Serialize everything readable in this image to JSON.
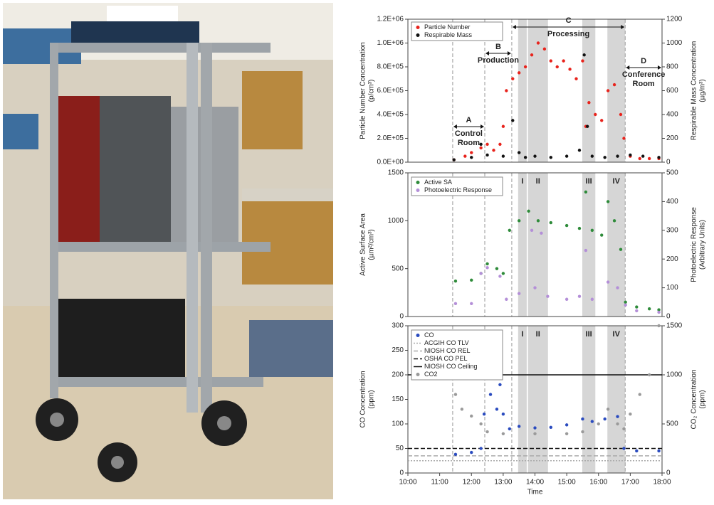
{
  "chart_data": [
    {
      "type": "scatter",
      "ylabel": [
        "Particle Number Concentration",
        "(p/cm³)"
      ],
      "y2label": [
        "Respirable Mass Concentration",
        "(µg/m³)"
      ],
      "xlim": [
        10,
        18
      ],
      "ylim": [
        0,
        1200000
      ],
      "yticks": [
        {
          "value": 0,
          "label": "0.0E+00"
        },
        {
          "value": 200000,
          "label": "2.0E+05"
        },
        {
          "value": 400000,
          "label": "4.0E+05"
        },
        {
          "value": 600000,
          "label": "6.0E+05"
        },
        {
          "value": 800000,
          "label": "8.0E+05"
        },
        {
          "value": 1000000,
          "label": "1.0E+06"
        },
        {
          "value": 1200000,
          "label": "1.2E+06"
        }
      ],
      "y2lim": [
        0,
        1200
      ],
      "y2ticks": [
        0,
        200,
        400,
        600,
        800,
        1000,
        1200
      ],
      "series": [
        {
          "name": "Particle Number",
          "color": "#e8231c",
          "x": [
            11.45,
            11.8,
            12.0,
            12.3,
            12.5,
            12.7,
            12.9,
            13.0,
            13.1,
            13.3,
            13.5,
            13.7,
            13.9,
            14.1,
            14.3,
            14.5,
            14.7,
            14.9,
            15.1,
            15.3,
            15.5,
            15.6,
            15.7,
            15.9,
            16.1,
            16.3,
            16.5,
            16.7,
            16.8,
            17.0,
            17.3,
            17.6,
            17.9
          ],
          "values": [
            20000,
            50000,
            80000,
            120000,
            150000,
            100000,
            150000,
            300000,
            600000,
            700000,
            750000,
            800000,
            900000,
            1000000,
            950000,
            850000,
            800000,
            850000,
            780000,
            700000,
            850000,
            300000,
            500000,
            400000,
            350000,
            600000,
            650000,
            400000,
            200000,
            50000,
            30000,
            30000,
            30000
          ]
        },
        {
          "name": "Respirable Mass",
          "color": "#111111",
          "axis": "y2",
          "x": [
            11.45,
            12.0,
            12.3,
            12.5,
            13.0,
            13.3,
            13.5,
            13.7,
            14.0,
            14.5,
            15.0,
            15.4,
            15.55,
            15.65,
            15.8,
            16.2,
            16.6,
            17.0,
            17.4,
            17.9
          ],
          "values": [
            20,
            40,
            150,
            60,
            50,
            350,
            80,
            40,
            50,
            40,
            50,
            100,
            900,
            300,
            50,
            40,
            50,
            60,
            50,
            40
          ]
        }
      ],
      "phases": [
        {
          "letter": "A",
          "label": [
            "Control",
            "Room"
          ],
          "start": 11.41,
          "end": 12.42
        },
        {
          "letter": "B",
          "label": [
            "Production"
          ],
          "start": 12.42,
          "end": 13.27
        },
        {
          "letter": "C",
          "label": [
            "Processing"
          ],
          "start": 13.27,
          "end": 16.84
        },
        {
          "letter": "D",
          "label": [
            "Conference",
            "Room"
          ],
          "start": 16.84,
          "end": 18
        }
      ],
      "bands": [
        {
          "label": "I",
          "start": 13.47,
          "end": 13.74
        },
        {
          "label": "II",
          "start": 13.78,
          "end": 14.41
        },
        {
          "label": "III",
          "start": 15.49,
          "end": 15.9
        },
        {
          "label": "IV",
          "start": 16.28,
          "end": 16.84
        }
      ]
    },
    {
      "type": "scatter",
      "ylabel": [
        "Active Surface Area",
        "(µm²/cm³)"
      ],
      "y2label": [
        "Photoelectric Response",
        "(Arbitrary Units)"
      ],
      "xlim": [
        10,
        18
      ],
      "ylim": [
        0,
        1500
      ],
      "yticks": [
        0,
        500,
        1000,
        1500
      ],
      "y2lim": [
        0,
        500
      ],
      "y2ticks": [
        0,
        100,
        200,
        300,
        400,
        500
      ],
      "series": [
        {
          "name": "Active SA",
          "color": "#2e8b3a",
          "x": [
            11.5,
            12.0,
            12.3,
            12.5,
            12.8,
            13.0,
            13.2,
            13.5,
            13.8,
            14.1,
            14.5,
            15.0,
            15.4,
            15.6,
            15.8,
            16.1,
            16.3,
            16.5,
            16.7,
            16.85,
            17.2,
            17.6,
            17.9
          ],
          "values": [
            370,
            380,
            450,
            550,
            500,
            450,
            900,
            1000,
            1100,
            1000,
            980,
            950,
            920,
            1300,
            900,
            850,
            1200,
            1000,
            700,
            150,
            100,
            80,
            70
          ]
        },
        {
          "name": "Photoelectric Response",
          "color": "#b48fd8",
          "axis": "y2",
          "x": [
            11.5,
            12.0,
            12.3,
            12.5,
            12.9,
            13.1,
            13.5,
            13.9,
            14.0,
            14.2,
            14.4,
            15.0,
            15.4,
            15.6,
            15.8,
            16.3,
            16.6,
            16.85,
            17.2,
            17.9
          ],
          "values": [
            45,
            45,
            150,
            170,
            140,
            60,
            80,
            300,
            100,
            290,
            70,
            60,
            70,
            230,
            60,
            120,
            100,
            40,
            20,
            15
          ]
        }
      ]
    },
    {
      "type": "scatter",
      "xlabel": "Time",
      "ylabel": [
        "CO Concentration",
        "(ppm)"
      ],
      "y2label": [
        "CO₂ Concentration",
        "(ppm)"
      ],
      "xlim": [
        10,
        18
      ],
      "xticks": [
        {
          "value": 10,
          "label": "10:00"
        },
        {
          "value": 11,
          "label": "11:00"
        },
        {
          "value": 12,
          "label": "12:00"
        },
        {
          "value": 13,
          "label": "13:00"
        },
        {
          "value": 14,
          "label": "14:00"
        },
        {
          "value": 15,
          "label": "15:00"
        },
        {
          "value": 16,
          "label": "16:00"
        },
        {
          "value": 17,
          "label": "17:00"
        },
        {
          "value": 18,
          "label": "18:00"
        }
      ],
      "ylim": [
        0,
        300
      ],
      "yticks": [
        0,
        50,
        100,
        150,
        200,
        250,
        300
      ],
      "y2lim": [
        0,
        1500
      ],
      "y2ticks": [
        0,
        500,
        1000,
        1500
      ],
      "series": [
        {
          "name": "CO",
          "color": "#2a4bbf",
          "x": [
            11.5,
            12.0,
            12.3,
            12.4,
            12.6,
            12.7,
            12.8,
            12.9,
            13.0,
            13.2,
            13.5,
            14.0,
            14.5,
            15.0,
            15.5,
            15.8,
            16.2,
            16.6,
            16.8,
            17.2,
            17.9
          ],
          "values": [
            38,
            42,
            50,
            120,
            160,
            220,
            130,
            180,
            120,
            90,
            95,
            92,
            93,
            98,
            110,
            105,
            110,
            115,
            50,
            45,
            45
          ]
        },
        {
          "name": "CO2",
          "color": "#9a9a9a",
          "axis": "y2",
          "x": [
            11.5,
            11.7,
            12.0,
            12.3,
            12.5,
            13.0,
            14.0,
            15.0,
            15.5,
            16.0,
            16.3,
            16.6,
            16.8,
            17.0,
            17.3,
            17.6,
            17.9
          ],
          "values": [
            800,
            650,
            580,
            500,
            420,
            400,
            400,
            400,
            420,
            500,
            650,
            500,
            450,
            600,
            800,
            1000,
            1500
          ]
        }
      ],
      "reference_lines": [
        {
          "name": "ACGIH CO TLV",
          "value": 25,
          "color": "#aaaaaa",
          "dash": "dotted"
        },
        {
          "name": "NIOSH CO REL",
          "value": 35,
          "color": "#aaaaaa",
          "dash": "dashed"
        },
        {
          "name": "OSHA CO PEL",
          "value": 50,
          "color": "#111111",
          "dash": "dashed"
        },
        {
          "name": "NIOSH CO Ceiling",
          "value": 200,
          "color": "#111111",
          "dash": "solid"
        }
      ]
    }
  ]
}
